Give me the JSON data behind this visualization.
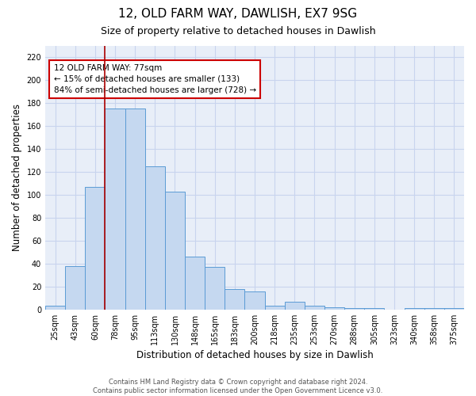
{
  "title1": "12, OLD FARM WAY, DAWLISH, EX7 9SG",
  "title2": "Size of property relative to detached houses in Dawlish",
  "xlabel": "Distribution of detached houses by size in Dawlish",
  "ylabel": "Number of detached properties",
  "categories": [
    "25sqm",
    "43sqm",
    "60sqm",
    "78sqm",
    "95sqm",
    "113sqm",
    "130sqm",
    "148sqm",
    "165sqm",
    "183sqm",
    "200sqm",
    "218sqm",
    "235sqm",
    "253sqm",
    "270sqm",
    "288sqm",
    "305sqm",
    "323sqm",
    "340sqm",
    "358sqm",
    "375sqm"
  ],
  "values": [
    3,
    38,
    107,
    175,
    175,
    125,
    103,
    46,
    37,
    18,
    16,
    3,
    7,
    3,
    2,
    1,
    1,
    0,
    1,
    1,
    1
  ],
  "bar_color": "#c5d8f0",
  "bar_edge_color": "#5b9bd5",
  "vline_index": 3,
  "annotation_text": "12 OLD FARM WAY: 77sqm\n← 15% of detached houses are smaller (133)\n84% of semi-detached houses are larger (728) →",
  "annotation_box_color": "white",
  "annotation_box_edge_color": "#cc0000",
  "vline_color": "#aa0000",
  "ylim": [
    0,
    230
  ],
  "yticks": [
    0,
    20,
    40,
    60,
    80,
    100,
    120,
    140,
    160,
    180,
    200,
    220
  ],
  "grid_color": "#c8d4ee",
  "bg_color": "#e8eef8",
  "footer_text": "Contains HM Land Registry data © Crown copyright and database right 2024.\nContains public sector information licensed under the Open Government Licence v3.0.",
  "title1_fontsize": 11,
  "title2_fontsize": 9,
  "xlabel_fontsize": 8.5,
  "ylabel_fontsize": 8.5,
  "annotation_fontsize": 7.5,
  "tick_fontsize": 7
}
